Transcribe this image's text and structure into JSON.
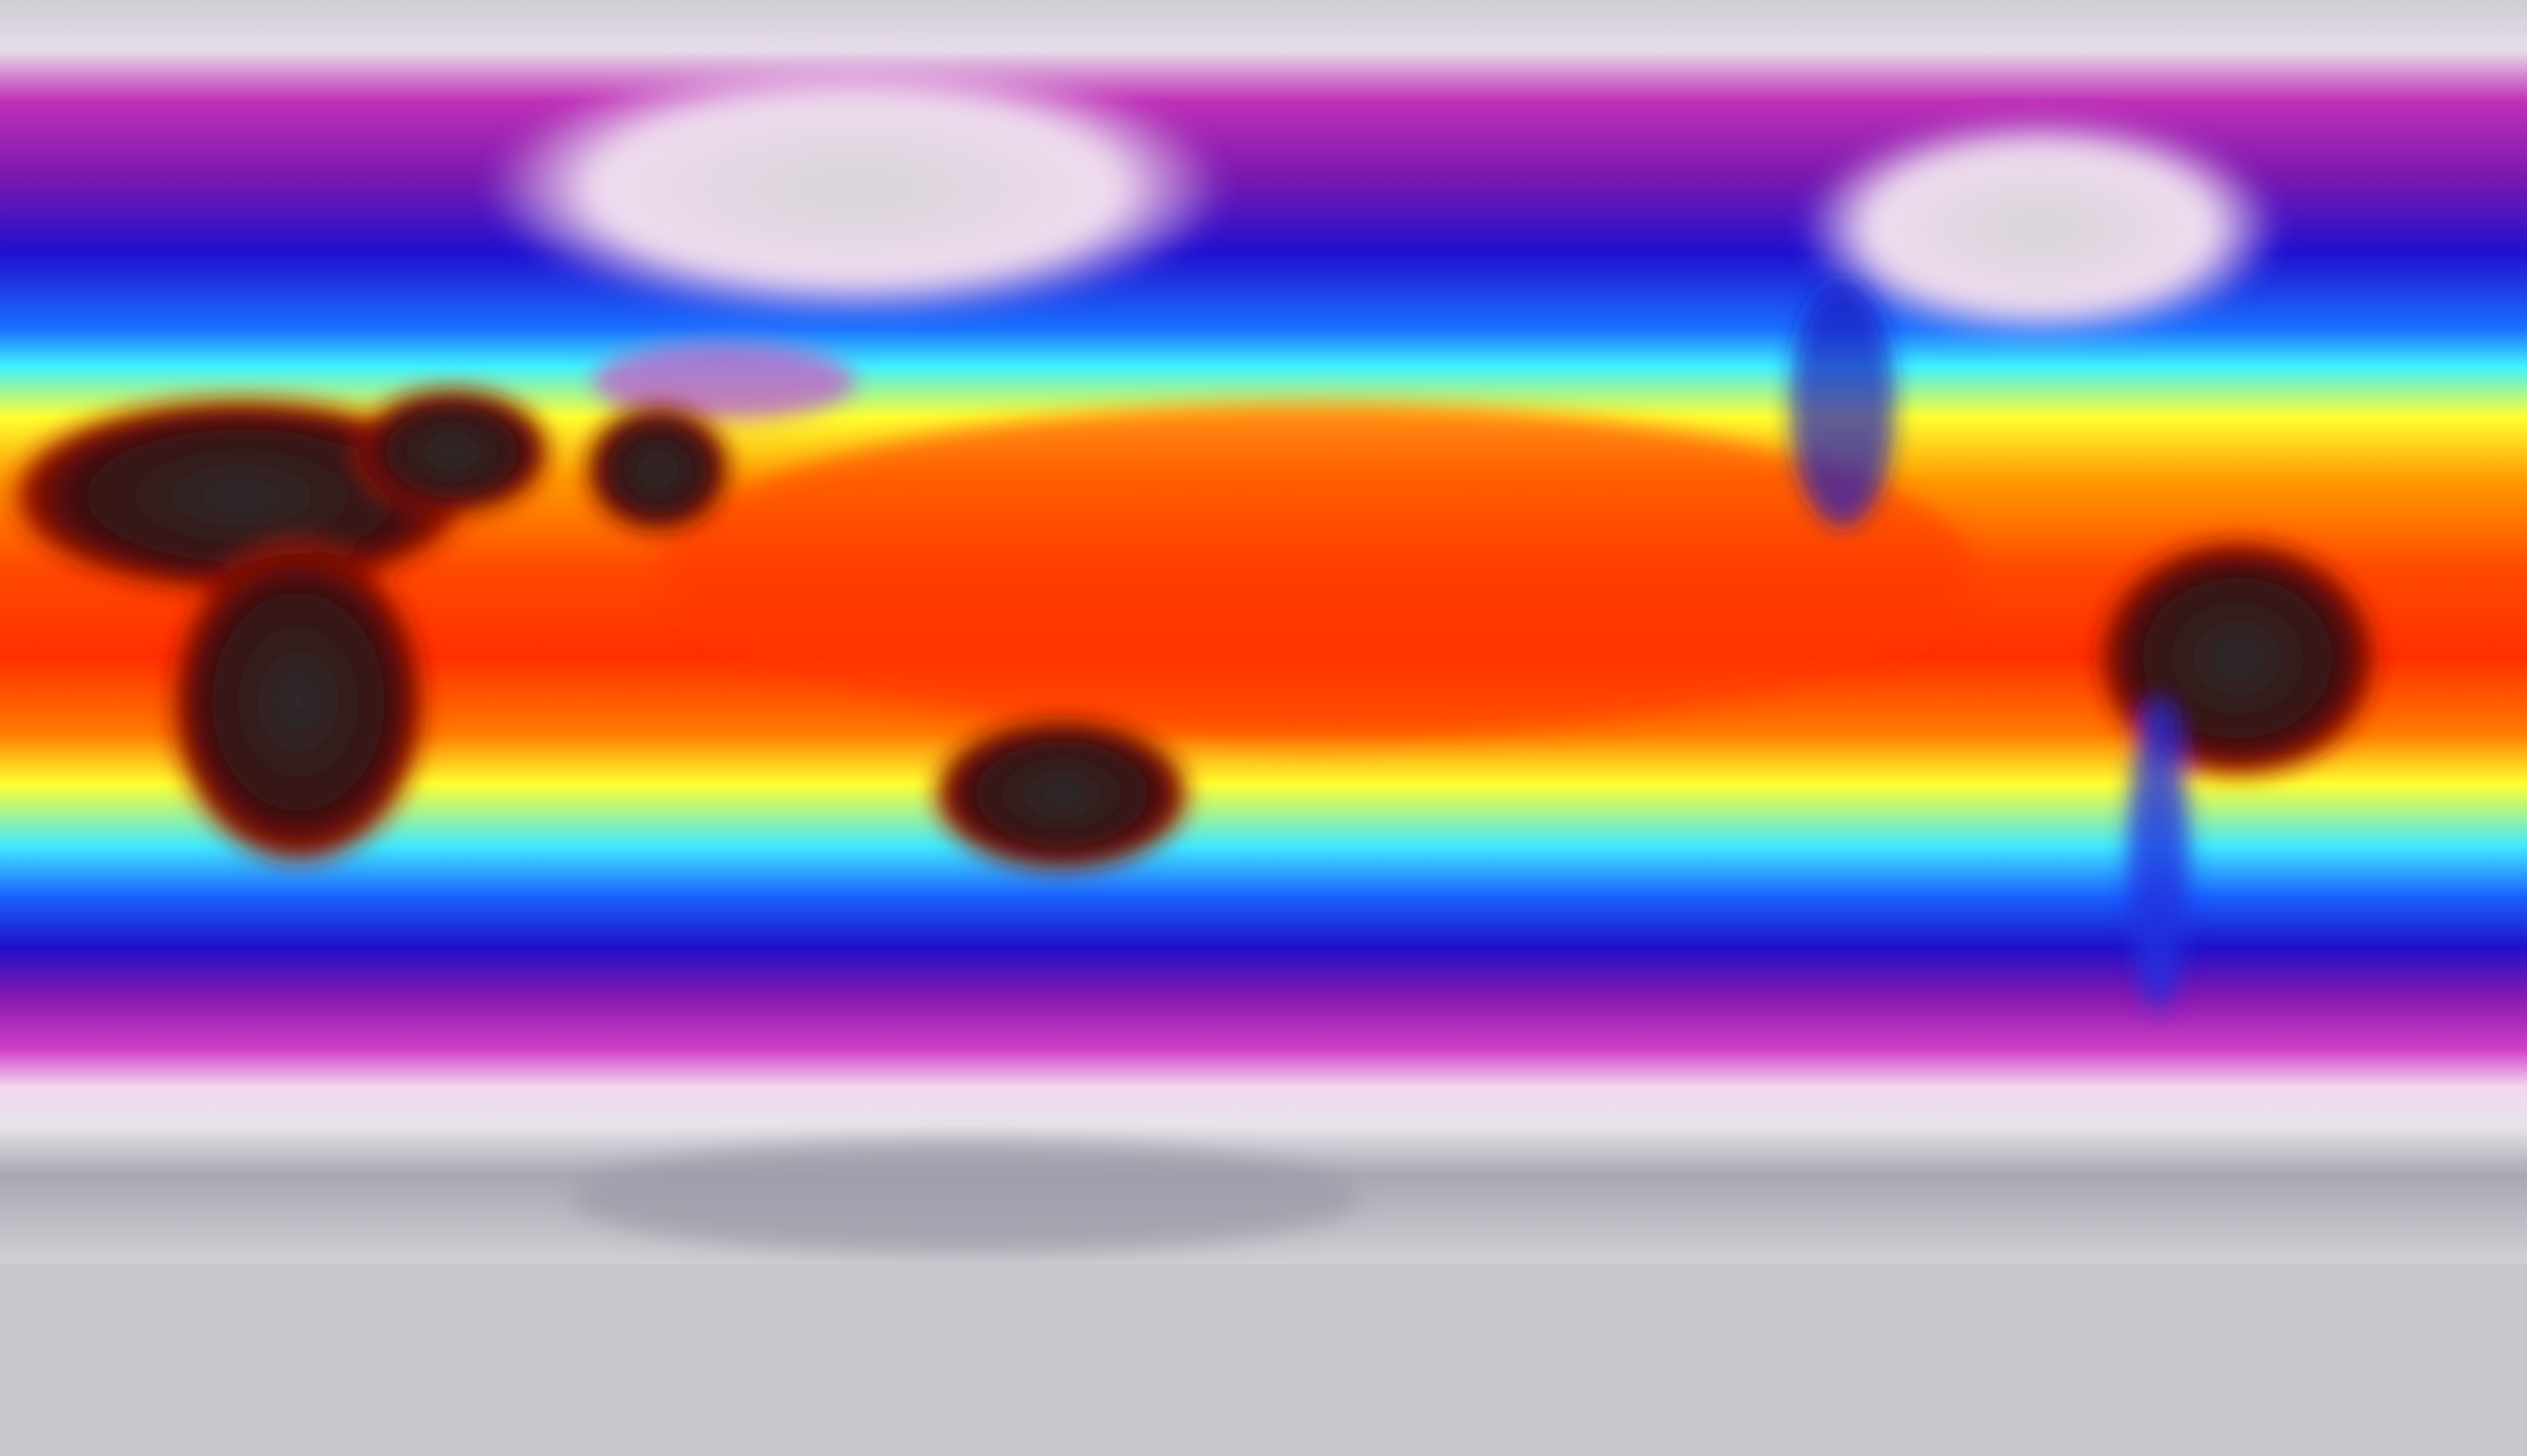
{
  "map": {
    "projection": "equirectangular",
    "colormap": [
      "#d8d8dc",
      "#f0d8f0",
      "#c020b0",
      "#2010c0",
      "#1060ff",
      "#40f0ff",
      "#ffff20",
      "#ff9000",
      "#ff3000",
      "#600000",
      "#303030"
    ],
    "colors": {
      "polar": "#c9c9cf",
      "pink": "#f0c8ee",
      "magenta": "#b520b0",
      "blue": "#2818d0",
      "cyan": "#40e8ff",
      "yellow": "#ffff30",
      "orange": "#ff8000",
      "red": "#ff3a00",
      "dark_land": "#3a2020",
      "cold_land": "#eadcea"
    }
  }
}
